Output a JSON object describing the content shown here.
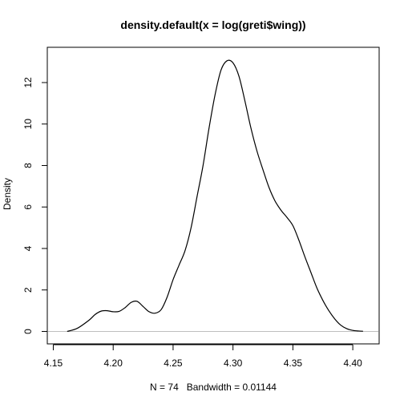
{
  "chart_data": {
    "type": "line",
    "title": "density.default(x = log(greti$wing))",
    "xlabel": "N = 74   Bandwidth = 0.01144",
    "ylabel": "Density",
    "xlim": [
      4.145,
      4.422
    ],
    "ylim": [
      -0.6,
      13.7
    ],
    "x_ticks": [
      4.15,
      4.2,
      4.25,
      4.3,
      4.35,
      4.4
    ],
    "x_tick_labels": [
      "4.15",
      "4.20",
      "4.25",
      "4.30",
      "4.35",
      "4.40"
    ],
    "y_ticks": [
      0,
      2,
      4,
      6,
      8,
      10,
      12
    ],
    "y_tick_labels": [
      "0",
      "2",
      "4",
      "6",
      "8",
      "10",
      "12"
    ],
    "baseline": 0,
    "baseline_color": "#bebebe",
    "line_color": "#000000",
    "grid": false,
    "x": [
      4.1616,
      4.17,
      4.18,
      4.185,
      4.19,
      4.195,
      4.2,
      4.205,
      4.21,
      4.215,
      4.22,
      4.225,
      4.23,
      4.235,
      4.24,
      4.245,
      4.25,
      4.255,
      4.26,
      4.265,
      4.27,
      4.275,
      4.28,
      4.285,
      4.29,
      4.295,
      4.3,
      4.305,
      4.31,
      4.315,
      4.32,
      4.325,
      4.33,
      4.335,
      4.34,
      4.345,
      4.35,
      4.355,
      4.36,
      4.365,
      4.37,
      4.375,
      4.38,
      4.385,
      4.39,
      4.395,
      4.4,
      4.405,
      4.4085
    ],
    "y": [
      0.0,
      0.15,
      0.55,
      0.82,
      0.98,
      1.0,
      0.95,
      0.97,
      1.15,
      1.4,
      1.45,
      1.2,
      0.95,
      0.88,
      1.05,
      1.65,
      2.5,
      3.2,
      3.9,
      5.0,
      6.5,
      8.0,
      9.8,
      11.4,
      12.6,
      13.05,
      12.95,
      12.3,
      11.1,
      9.8,
      8.7,
      7.8,
      6.95,
      6.3,
      5.85,
      5.5,
      5.1,
      4.4,
      3.6,
      2.85,
      2.1,
      1.5,
      1.0,
      0.6,
      0.3,
      0.13,
      0.05,
      0.02,
      0.01
    ]
  }
}
